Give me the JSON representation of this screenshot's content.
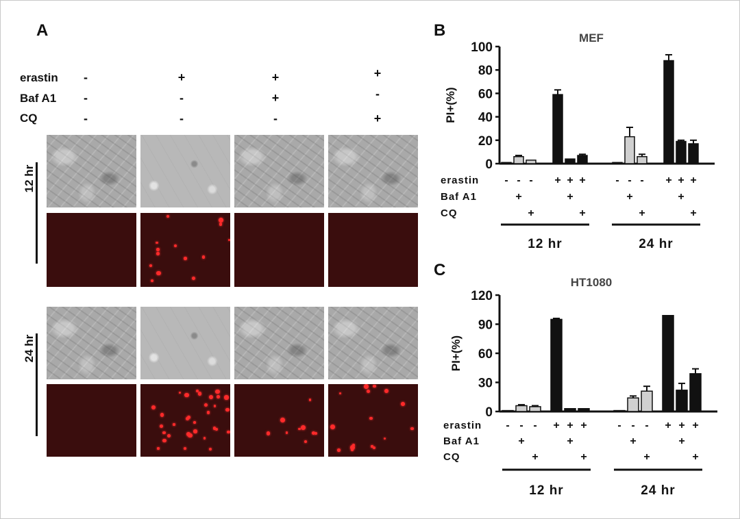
{
  "panel_a": {
    "label": "A",
    "conditions": [
      {
        "name": "erastin",
        "signs": [
          "-",
          "+",
          "+",
          "+"
        ]
      },
      {
        "name": "Baf A1",
        "signs": [
          "-",
          "-",
          "+",
          "-"
        ]
      },
      {
        "name": "CQ",
        "signs": [
          "-",
          "-",
          "-",
          "+"
        ]
      }
    ],
    "time_labels": [
      "12 hr",
      "24 hr"
    ]
  },
  "chart_data": [
    {
      "type": "bar",
      "panel_label": "B",
      "title": "MEF",
      "ylabel": "PI+(%)",
      "ylim": [
        0,
        100
      ],
      "yticks": [
        0,
        20,
        40,
        60,
        80,
        100
      ],
      "values": [
        1,
        6,
        3,
        59,
        4,
        7,
        1,
        23,
        6,
        88,
        19,
        17
      ],
      "errors": [
        0.5,
        1,
        0.5,
        4,
        0.5,
        1,
        0.5,
        8,
        2,
        5,
        1,
        3
      ],
      "fills": [
        "black",
        "gray",
        "gray",
        "black",
        "black",
        "black",
        "black",
        "gray",
        "gray",
        "black",
        "black",
        "black"
      ],
      "factors": [
        {
          "name": "erastin",
          "signs": [
            "-",
            "-",
            "-",
            "+",
            "+",
            "+",
            "-",
            "-",
            "-",
            "+",
            "+",
            "+"
          ]
        },
        {
          "name": "Baf A1",
          "signs": [
            "",
            "+",
            "",
            "",
            "+",
            "",
            "",
            "+",
            "",
            "",
            "+",
            ""
          ]
        },
        {
          "name": "CQ",
          "signs": [
            "",
            "",
            "+",
            "",
            "",
            "+",
            "",
            "",
            "+",
            "",
            "",
            "+"
          ]
        }
      ],
      "groups": [
        "12 hr",
        "24 hr"
      ]
    },
    {
      "type": "bar",
      "panel_label": "C",
      "title": "HT1080",
      "ylabel": "PI+(%)",
      "ylim": [
        0,
        120
      ],
      "yticks": [
        0,
        30,
        60,
        90,
        120
      ],
      "values": [
        1,
        6,
        5,
        95,
        3,
        3,
        1,
        14,
        21,
        99,
        22,
        39
      ],
      "errors": [
        0.5,
        1,
        1,
        1,
        0.5,
        0.5,
        0.5,
        2,
        5,
        0.5,
        7,
        5
      ],
      "fills": [
        "black",
        "gray",
        "gray",
        "black",
        "black",
        "black",
        "black",
        "gray",
        "gray",
        "black",
        "black",
        "black"
      ],
      "factors": [
        {
          "name": "erastin",
          "signs": [
            "-",
            "-",
            "-",
            "+",
            "+",
            "+",
            "-",
            "-",
            "-",
            "+",
            "+",
            "+"
          ]
        },
        {
          "name": "Baf A1",
          "signs": [
            "",
            "+",
            "",
            "",
            "+",
            "",
            "",
            "+",
            "",
            "",
            "+",
            ""
          ]
        },
        {
          "name": "CQ",
          "signs": [
            "",
            "",
            "+",
            "",
            "",
            "+",
            "",
            "",
            "+",
            "",
            "",
            "+"
          ]
        }
      ],
      "groups": [
        "12 hr",
        "24 hr"
      ]
    }
  ],
  "colors": {
    "black_bar": "#111111",
    "gray_bar": "#d0d0d0",
    "fluor_bg": "#3a0d0d",
    "dot": "#ff2a2a"
  }
}
